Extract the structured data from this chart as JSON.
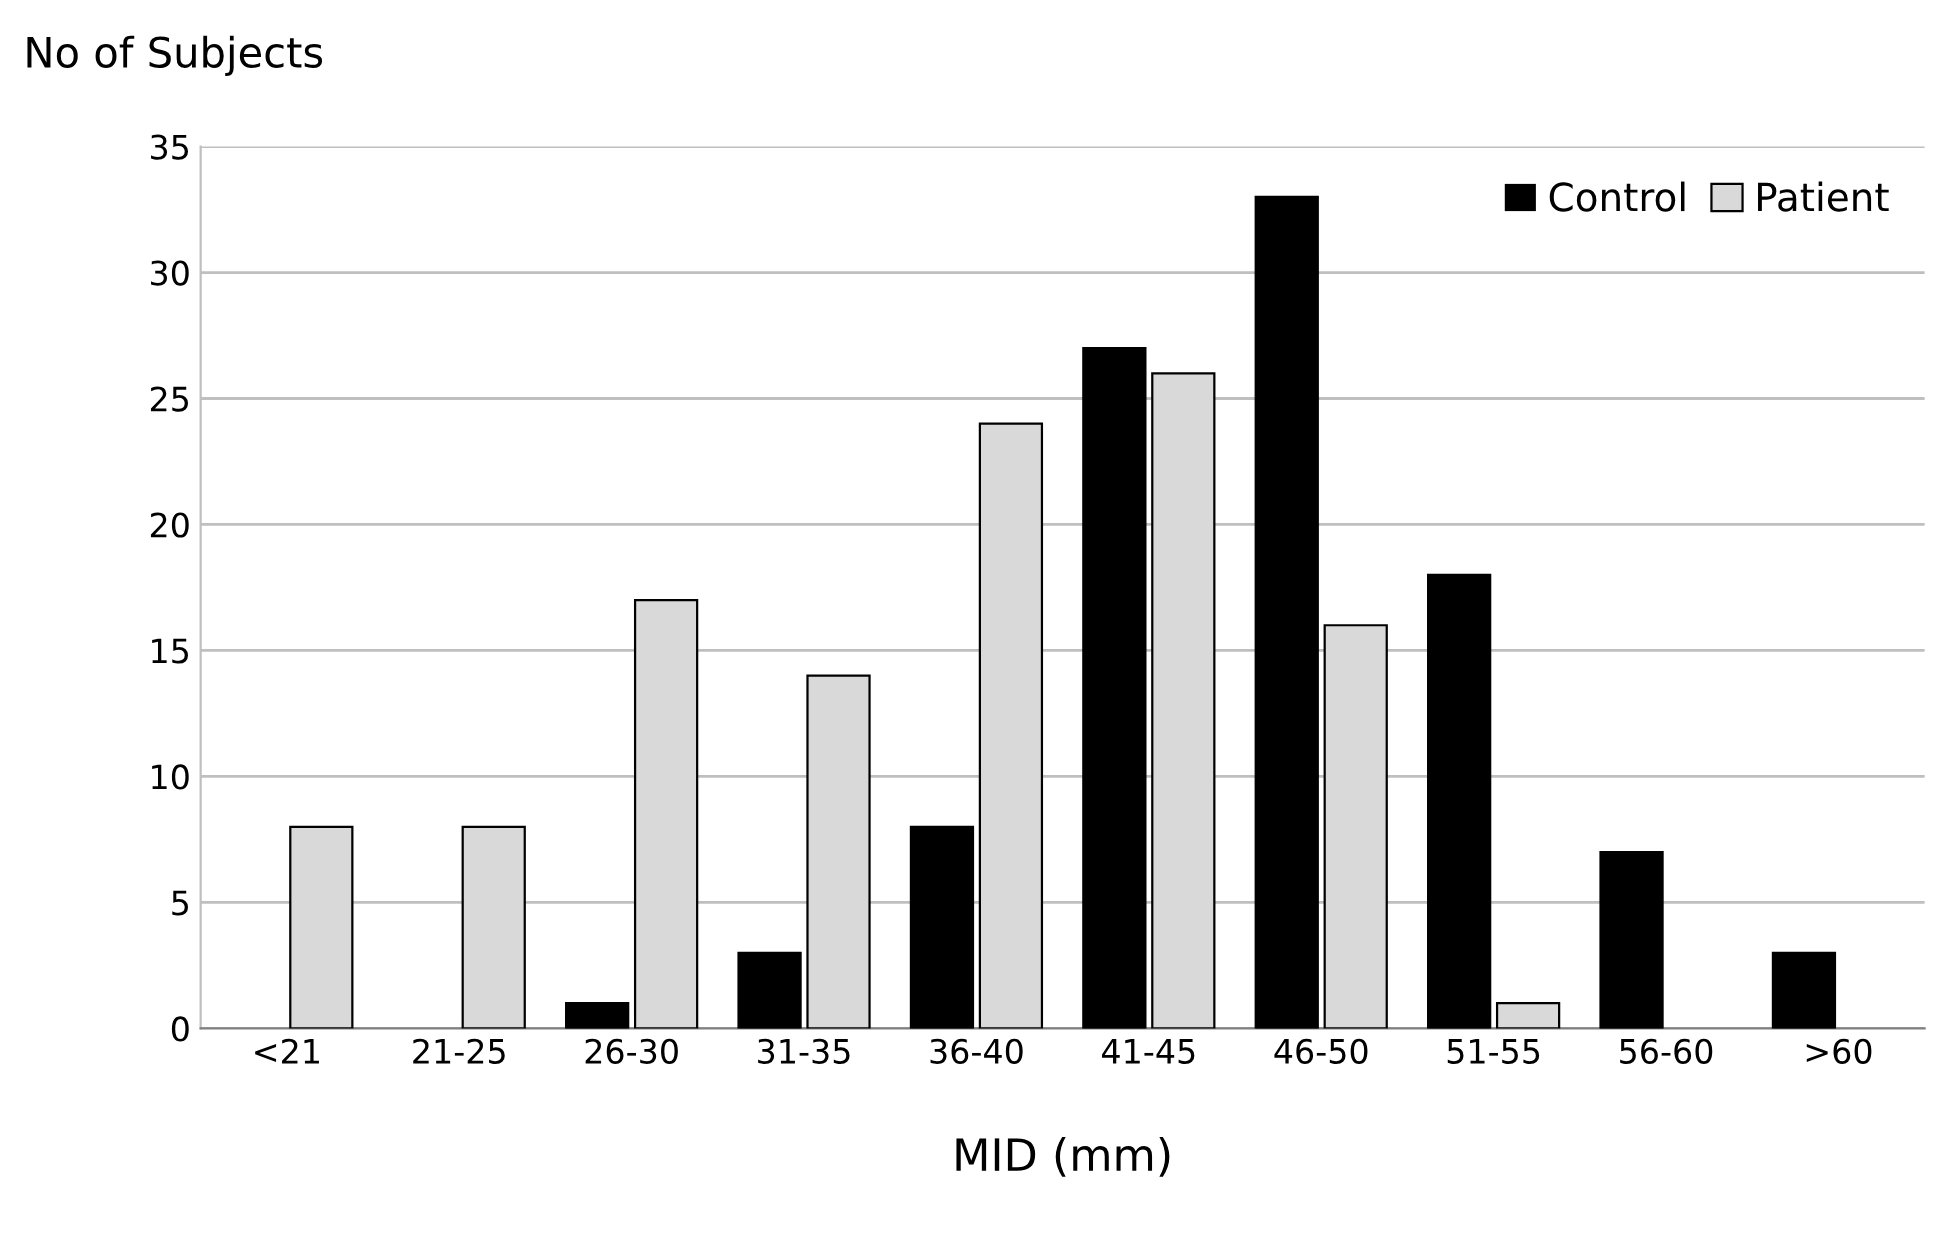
{
  "chart_data": {
    "type": "bar",
    "ylabel": "No of Subjects",
    "xlabel": "MID (mm)",
    "categories": [
      "<21",
      "21-25",
      "26-30",
      "31-35",
      "36-40",
      "41-45",
      "46-50",
      "51-55",
      "56-60",
      ">60"
    ],
    "series": [
      {
        "name": "Control",
        "color": "#000000",
        "values": [
          0,
          0,
          1,
          3,
          8,
          27,
          33,
          18,
          7,
          3
        ]
      },
      {
        "name": "Patient",
        "color": "#d9d9d9",
        "values": [
          8,
          8,
          17,
          14,
          24,
          26,
          16,
          1,
          0,
          0
        ]
      }
    ],
    "ylim": [
      0,
      35
    ],
    "yticks": [
      0,
      5,
      10,
      15,
      20,
      25,
      30,
      35
    ],
    "grid": "y",
    "legend": "top right"
  }
}
